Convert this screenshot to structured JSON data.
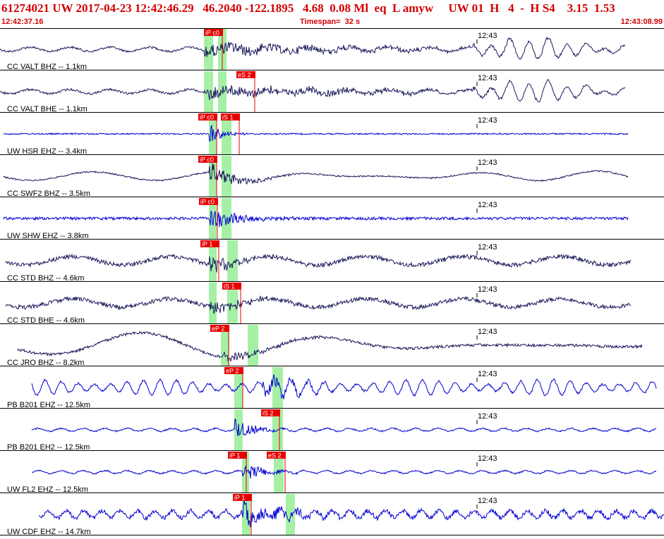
{
  "header": {
    "title": "61274021 UW 2017-04-23 12:42:46.29   46.2040 -122.1895   4.68  0.08 Ml  eq  L amyw     UW 01  H   4  -  H S4    3.15  1.53",
    "start_time": "12:42:37.16",
    "timespan": "Timespan=  32 s",
    "end_time": "12:43:08.99"
  },
  "colors": {
    "title_red": "#d40000",
    "pick_red": "#e80000",
    "band_green": "#a6f0a6",
    "blue_trace": "#0000d0",
    "dark_trace": "#1a1a5c",
    "grid_black": "#000000"
  },
  "minute_label": "12:43",
  "traces": [
    {
      "label": "CC VALT BHZ -- 1.1km",
      "color": "dark",
      "picks": [
        {
          "text": "iP c0"
        }
      ]
    },
    {
      "label": "CC VALT BHE -- 1.1km",
      "color": "dark",
      "picks": [
        {
          "text": "eS 2"
        }
      ]
    },
    {
      "label": "UW HSR EHZ -- 3.4km",
      "color": "blue",
      "picks": [
        {
          "text": "iP c0"
        },
        {
          "text": "iS 1"
        }
      ]
    },
    {
      "label": "CC SWF2 BHZ -- 3.5km",
      "color": "dark",
      "picks": [
        {
          "text": "iP c0"
        }
      ]
    },
    {
      "label": "UW SHW EHZ -- 3.8km",
      "color": "blue",
      "picks": [
        {
          "text": "iP c0"
        }
      ]
    },
    {
      "label": "CC STD BHZ -- 4.6km",
      "color": "dark",
      "picks": [
        {
          "text": "iP 1"
        }
      ]
    },
    {
      "label": "CC STD BHE -- 4.6km",
      "color": "dark",
      "picks": [
        {
          "text": "iS 1"
        }
      ]
    },
    {
      "label": "CC JRO BHZ -- 8.2km",
      "color": "dark",
      "picks": [
        {
          "text": "eP 2"
        }
      ]
    },
    {
      "label": "PB B201 EHZ -- 12.5km",
      "color": "blue",
      "picks": [
        {
          "text": "eP 2"
        }
      ]
    },
    {
      "label": "PB B201 EH2 -- 12.5km",
      "color": "blue",
      "picks": [
        {
          "text": "iS 2"
        }
      ]
    },
    {
      "label": "UW FL2 EHZ -- 12.5km",
      "color": "blue",
      "picks": [
        {
          "text": "iP 1"
        },
        {
          "text": "eS 2"
        }
      ]
    },
    {
      "label": "UW CDF EHZ -- 14.7km",
      "color": "blue",
      "picks": [
        {
          "text": "iP 1"
        }
      ]
    }
  ]
}
